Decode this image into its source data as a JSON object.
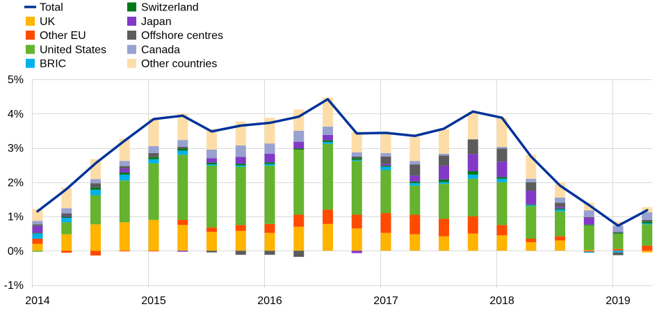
{
  "chart_data": {
    "type": "bar",
    "stacked": true,
    "x": [
      2014,
      2014.25,
      2014.5,
      2014.75,
      2015,
      2015.25,
      2015.5,
      2015.75,
      2016,
      2016.25,
      2016.5,
      2016.75,
      2017,
      2017.25,
      2017.5,
      2017.75,
      2018,
      2018.25,
      2018.5,
      2018.75,
      2019,
      2019.25
    ],
    "xlim": [
      2014,
      2019.34
    ],
    "x_ticks": [
      "2014",
      "2015",
      "2016",
      "2017",
      "2018",
      "2019"
    ],
    "ylim": [
      -1,
      5
    ],
    "y_ticks": [
      "-1%",
      "0%",
      "1%",
      "2%",
      "3%",
      "4%",
      "5%"
    ],
    "grid": true,
    "legend_position": "top-left",
    "line_series": {
      "name": "Total",
      "color": "#003299",
      "values": [
        1.15,
        1.8,
        2.55,
        3.21,
        3.84,
        3.94,
        3.48,
        3.65,
        3.73,
        3.91,
        4.42,
        3.42,
        3.44,
        3.35,
        3.56,
        4.06,
        3.88,
        2.75,
        1.9,
        1.33,
        0.73,
        1.18
      ]
    },
    "series": [
      {
        "name": "UK",
        "color": "#FFB400",
        "values": [
          0.2,
          0.48,
          0.77,
          0.83,
          0.9,
          0.75,
          0.55,
          0.58,
          0.52,
          0.7,
          0.78,
          0.65,
          0.52,
          0.48,
          0.42,
          0.5,
          0.45,
          0.25,
          0.3,
          0.02,
          0.0,
          -0.05
        ]
      },
      {
        "name": "Other EU",
        "color": "#FF4B00",
        "values": [
          0.15,
          -0.06,
          -0.14,
          -0.02,
          -0.02,
          0.15,
          0.13,
          0.17,
          0.26,
          0.35,
          0.42,
          0.4,
          0.58,
          0.57,
          0.51,
          0.5,
          0.3,
          0.1,
          0.12,
          -0.03,
          0.05,
          0.15
        ]
      },
      {
        "name": "United States",
        "color": "#65B32E",
        "values": [
          -0.03,
          0.35,
          0.85,
          1.22,
          1.65,
          1.9,
          1.8,
          1.7,
          1.7,
          1.9,
          1.92,
          1.57,
          1.25,
          0.85,
          1.02,
          1.1,
          1.25,
          0.95,
          0.73,
          0.72,
          0.45,
          0.62
        ]
      },
      {
        "name": "BRIC",
        "color": "#00B1EA",
        "values": [
          0.15,
          0.13,
          0.16,
          0.17,
          0.12,
          0.12,
          0.04,
          0.04,
          0.05,
          0.0,
          0.05,
          0.03,
          0.1,
          0.07,
          0.05,
          0.12,
          0.1,
          0.03,
          0.05,
          -0.03,
          -0.05,
          0.03
        ]
      },
      {
        "name": "Switzerland",
        "color": "#007816",
        "values": [
          0.02,
          0.03,
          0.06,
          0.06,
          0.06,
          0.06,
          0.05,
          0.05,
          0.05,
          0.03,
          0.05,
          0.05,
          0.03,
          0.05,
          0.08,
          0.1,
          0.05,
          0.02,
          0.03,
          0.02,
          0.03,
          0.05
        ]
      },
      {
        "name": "Japan",
        "color": "#8139C6",
        "values": [
          0.2,
          0.02,
          0.0,
          0.12,
          0.0,
          -0.03,
          0.13,
          0.2,
          0.25,
          0.2,
          0.16,
          -0.07,
          0.05,
          0.17,
          0.4,
          0.5,
          0.45,
          0.4,
          0.05,
          0.2,
          0.02,
          0.0
        ]
      },
      {
        "name": "Offshore centres",
        "color": "#5C5C5C",
        "values": [
          0.05,
          0.08,
          0.13,
          0.07,
          0.12,
          0.05,
          -0.05,
          -0.12,
          -0.12,
          -0.18,
          0.0,
          0.05,
          0.22,
          0.33,
          0.3,
          0.43,
          0.38,
          0.25,
          0.12,
          0.02,
          -0.08,
          0.05
        ]
      },
      {
        "name": "Canada",
        "color": "#98A1D0",
        "values": [
          0.1,
          0.15,
          0.12,
          0.15,
          0.2,
          0.2,
          0.25,
          0.33,
          0.3,
          0.32,
          0.24,
          0.12,
          0.1,
          0.1,
          0.05,
          0.0,
          0.05,
          0.1,
          0.15,
          0.2,
          0.18,
          0.22
        ]
      },
      {
        "name": "Other countries",
        "color": "#FDDDA7",
        "values": [
          0.35,
          0.6,
          0.58,
          0.65,
          0.8,
          0.78,
          0.6,
          0.7,
          0.75,
          0.62,
          0.85,
          0.6,
          0.6,
          0.7,
          0.72,
          0.8,
          0.85,
          0.7,
          0.45,
          0.22,
          0.12,
          0.15
        ]
      }
    ]
  }
}
